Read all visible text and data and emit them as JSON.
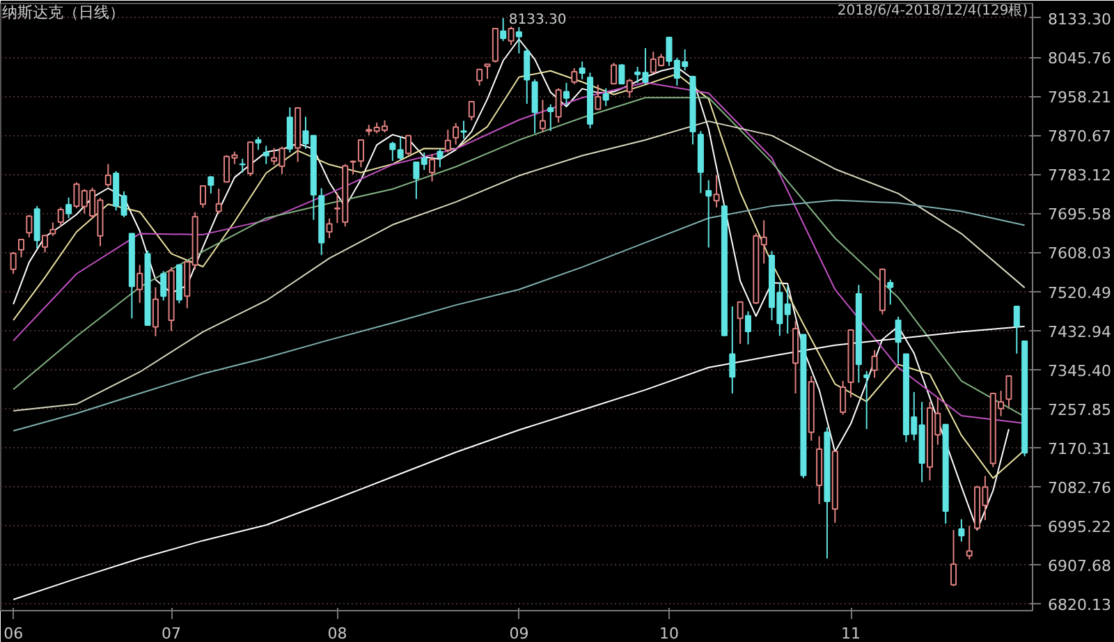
{
  "chart_data": {
    "type": "candlestick",
    "title": "纳斯达克（日线）",
    "annotations": [
      "2018/6/4-2018/12/4(129根)",
      "8133.30"
    ],
    "categories": [
      "06",
      null,
      null,
      null,
      null,
      null,
      null,
      null,
      null,
      null,
      null,
      null,
      null,
      null,
      null,
      null,
      null,
      null,
      null,
      null,
      "07",
      null,
      null,
      null,
      null,
      null,
      null,
      null,
      null,
      null,
      null,
      null,
      null,
      null,
      null,
      null,
      null,
      null,
      null,
      null,
      null,
      "08",
      null,
      null,
      null,
      null,
      null,
      null,
      null,
      null,
      null,
      null,
      null,
      null,
      null,
      null,
      null,
      null,
      null,
      null,
      null,
      null,
      null,
      null,
      "09",
      null,
      null,
      null,
      null,
      null,
      null,
      null,
      null,
      null,
      null,
      null,
      null,
      null,
      null,
      null,
      null,
      null,
      null,
      "10",
      null,
      null,
      null,
      null,
      null,
      null,
      null,
      null,
      null,
      null,
      null,
      null,
      null,
      null,
      null,
      null,
      null,
      null,
      null,
      null,
      null,
      null,
      "11",
      null,
      null,
      null,
      null,
      null,
      null,
      null,
      null,
      null,
      null,
      null,
      null,
      null,
      null,
      null,
      null,
      null,
      null,
      null,
      null,
      null,
      null
    ],
    "ohlc": [
      [
        7570,
        7609,
        7560,
        7606
      ],
      [
        7614,
        7637,
        7597,
        7637
      ],
      [
        7652,
        7692,
        7642,
        7689
      ],
      [
        7705,
        7712,
        7617,
        7635
      ],
      [
        7620,
        7648,
        7608,
        7646
      ],
      [
        7650,
        7675,
        7645,
        7659
      ],
      [
        7676,
        7709,
        7666,
        7704
      ],
      [
        7715,
        7731,
        7685,
        7695
      ],
      [
        7712,
        7765,
        7707,
        7761
      ],
      [
        7711,
        7750,
        7695,
        7746
      ],
      [
        7690,
        7753,
        7684,
        7747
      ],
      [
        7645,
        7730,
        7622,
        7725
      ],
      [
        7760,
        7806,
        7755,
        7781
      ],
      [
        7785,
        7790,
        7702,
        7712
      ],
      [
        7735,
        7745,
        7687,
        7692
      ],
      [
        7650,
        7651,
        7460,
        7532
      ],
      [
        7525,
        7580,
        7495,
        7561
      ],
      [
        7605,
        7612,
        7445,
        7445
      ],
      [
        7441,
        7530,
        7420,
        7503
      ],
      [
        7560,
        7566,
        7500,
        7510
      ],
      [
        7456,
        7575,
        7432,
        7567
      ],
      [
        7580,
        7580,
        7494,
        7502
      ],
      [
        7510,
        7588,
        7483,
        7587
      ],
      [
        7580,
        7698,
        7570,
        7688
      ],
      [
        7716,
        7757,
        7708,
        7757
      ],
      [
        7777,
        7779,
        7740,
        7759
      ],
      [
        7700,
        7751,
        7695,
        7717
      ],
      [
        7766,
        7826,
        7766,
        7823
      ],
      [
        7820,
        7834,
        7806,
        7826
      ],
      [
        7806,
        7818,
        7787,
        7805
      ],
      [
        7785,
        7857,
        7779,
        7855
      ],
      [
        7860,
        7867,
        7838,
        7854
      ],
      [
        7832,
        7847,
        7806,
        7825
      ],
      [
        7813,
        7842,
        7804,
        7820
      ],
      [
        7801,
        7845,
        7784,
        7841
      ],
      [
        7911,
        7933,
        7832,
        7840
      ],
      [
        7842,
        7933,
        7811,
        7932
      ],
      [
        7880,
        7912,
        7840,
        7852
      ],
      [
        7870,
        7871,
        7681,
        7737
      ],
      [
        7735,
        7752,
        7602,
        7630
      ],
      [
        7654,
        7684,
        7640,
        7672
      ],
      [
        7706,
        7742,
        7674,
        7707
      ],
      [
        7676,
        7806,
        7666,
        7802
      ],
      [
        7811,
        7814,
        7783,
        7812
      ],
      [
        7813,
        7860,
        7799,
        7860
      ],
      [
        7880,
        7894,
        7871,
        7883
      ],
      [
        7880,
        7899,
        7875,
        7888
      ],
      [
        7882,
        7904,
        7877,
        7891
      ],
      [
        7852,
        7856,
        7813,
        7839
      ],
      [
        7838,
        7867,
        7815,
        7820
      ],
      [
        7830,
        7871,
        7826,
        7870
      ],
      [
        7810,
        7811,
        7728,
        7774
      ],
      [
        7819,
        7832,
        7793,
        7806
      ],
      [
        7787,
        7828,
        7767,
        7816
      ],
      [
        7834,
        7840,
        7799,
        7821
      ],
      [
        7837,
        7883,
        7832,
        7859
      ],
      [
        7865,
        7898,
        7850,
        7889
      ],
      [
        7880,
        7903,
        7863,
        7878
      ],
      [
        7912,
        7946,
        7904,
        7946
      ],
      [
        7993,
        8019,
        7982,
        8018
      ],
      [
        8025,
        8030,
        7997,
        8030
      ],
      [
        8037,
        8110,
        8034,
        8110
      ],
      [
        8104,
        8133.3,
        8082,
        8088
      ],
      [
        8082,
        8114,
        8073,
        8110
      ],
      [
        8102,
        8113,
        8054,
        8092
      ],
      [
        8059,
        8065,
        7941,
        7995
      ],
      [
        7990,
        7996,
        7875,
        7922
      ],
      [
        7886,
        7950,
        7877,
        7903
      ],
      [
        7932,
        7940,
        7880,
        7924
      ],
      [
        7912,
        7976,
        7899,
        7972
      ],
      [
        7968,
        7988,
        7937,
        7954
      ],
      [
        7990,
        8021,
        7985,
        8013
      ],
      [
        8021,
        8036,
        7996,
        8010
      ],
      [
        8000,
        8011,
        7886,
        7896
      ],
      [
        7929,
        7984,
        7927,
        7957
      ],
      [
        7963,
        7976,
        7936,
        7950
      ],
      [
        7986,
        8033,
        7985,
        8028
      ],
      [
        8028,
        8030,
        7986,
        7986
      ],
      [
        7968,
        7997,
        7955,
        7993
      ],
      [
        8012,
        8024,
        7988,
        8007
      ],
      [
        8011,
        8066,
        7985,
        7990
      ],
      [
        8012,
        8058,
        8011,
        8041
      ],
      [
        8027,
        8053,
        8025,
        8046
      ],
      [
        8090,
        8091,
        8026,
        8037
      ],
      [
        8038,
        8044,
        7982,
        7999
      ],
      [
        8035,
        8063,
        8016,
        8025
      ],
      [
        8002,
        8004,
        7850,
        7879
      ],
      [
        7872,
        7880,
        7741,
        7788
      ],
      [
        7746,
        7770,
        7619,
        7735
      ],
      [
        7724,
        7781,
        7709,
        7738
      ],
      [
        7712,
        7715,
        7421,
        7422
      ],
      [
        7380,
        7487,
        7292,
        7329
      ],
      [
        7460,
        7498,
        7403,
        7497
      ],
      [
        7466,
        7476,
        7402,
        7431
      ],
      [
        7495,
        7651,
        7492,
        7645
      ],
      [
        7625,
        7680,
        7583,
        7642
      ],
      [
        7601,
        7611,
        7456,
        7485
      ],
      [
        7518,
        7541,
        7421,
        7449
      ],
      [
        7492,
        7533,
        7426,
        7469
      ],
      [
        7360,
        7454,
        7292,
        7437
      ],
      [
        7424,
        7424,
        7102,
        7108
      ],
      [
        7205,
        7331,
        7186,
        7318
      ],
      [
        7086,
        7196,
        7044,
        7167
      ],
      [
        7205,
        7216,
        6922,
        7050
      ],
      [
        7033,
        7164,
        7002,
        7162
      ],
      [
        7250,
        7320,
        7244,
        7306
      ],
      [
        7317,
        7435,
        7283,
        7434
      ],
      [
        7515,
        7535,
        7316,
        7357
      ],
      [
        7333,
        7342,
        7212,
        7328
      ],
      [
        7344,
        7389,
        7327,
        7375
      ],
      [
        7478,
        7572,
        7469,
        7570
      ],
      [
        7540,
        7547,
        7491,
        7530
      ],
      [
        7456,
        7464,
        7359,
        7407
      ],
      [
        7380,
        7381,
        7183,
        7200
      ],
      [
        7239,
        7295,
        7187,
        7201
      ],
      [
        7221,
        7273,
        7093,
        7136
      ],
      [
        7127,
        7273,
        7097,
        7259
      ],
      [
        7199,
        7282,
        7177,
        7247
      ],
      [
        7222,
        7223,
        7000,
        7028
      ],
      [
        6863,
        6986,
        6860,
        6909
      ],
      [
        6988,
        7010,
        6960,
        6973
      ],
      [
        6928,
        6995,
        6920,
        6939
      ],
      [
        6990,
        7085,
        6985,
        7082
      ],
      [
        7041,
        7107,
        7008,
        7082
      ],
      [
        7135,
        7293,
        7127,
        7292
      ],
      [
        7258,
        7298,
        7241,
        7273
      ],
      [
        7279,
        7332,
        7262,
        7331
      ],
      [
        7487,
        7487,
        7381,
        7442
      ],
      [
        7409,
        7410,
        7151,
        7159
      ]
    ],
    "colors": [
      "#e08080",
      "#e08080",
      "#e08080",
      "#5fe3e3",
      "#e08080",
      "#e08080",
      "#e08080",
      "#5fe3e3",
      "#e08080",
      "#e08080",
      "#e08080",
      "#e08080",
      "#e08080",
      "#5fe3e3",
      "#5fe3e3",
      "#5fe3e3",
      "#e08080",
      "#5fe3e3",
      "#e08080",
      "#5fe3e3",
      "#e08080",
      "#5fe3e3",
      "#e08080",
      "#e08080",
      "#e08080",
      "#5fe3e3",
      "#e08080",
      "#e08080",
      "#e08080",
      "#5fe3e3",
      "#e08080",
      "#5fe3e3",
      "#5fe3e3",
      "#e08080",
      "#e08080",
      "#5fe3e3",
      "#e08080",
      "#5fe3e3",
      "#5fe3e3",
      "#5fe3e3",
      "#e08080",
      "#e08080",
      "#e08080",
      "#e08080",
      "#e08080",
      "#e08080",
      "#e08080",
      "#e08080",
      "#5fe3e3",
      "#5fe3e3",
      "#e08080",
      "#5fe3e3",
      "#5fe3e3",
      "#e08080",
      "#5fe3e3",
      "#e08080",
      "#e08080",
      "#5fe3e3",
      "#e08080",
      "#e08080",
      "#e08080",
      "#e08080",
      "#5fe3e3",
      "#e08080",
      "#5fe3e3",
      "#5fe3e3",
      "#5fe3e3",
      "#e08080",
      "#5fe3e3",
      "#e08080",
      "#5fe3e3",
      "#e08080",
      "#5fe3e3",
      "#5fe3e3",
      "#e08080",
      "#5fe3e3",
      "#e08080",
      "#5fe3e3",
      "#e08080",
      "#5fe3e3",
      "#5fe3e3",
      "#e08080",
      "#e08080",
      "#5fe3e3",
      "#5fe3e3",
      "#5fe3e3",
      "#5fe3e3",
      "#5fe3e3",
      "#5fe3e3",
      "#e08080",
      "#5fe3e3",
      "#5fe3e3",
      "#e08080",
      "#5fe3e3",
      "#e08080",
      "#e08080",
      "#5fe3e3",
      "#5fe3e3",
      "#5fe3e3",
      "#e08080",
      "#5fe3e3",
      "#e08080",
      "#e08080",
      "#5fe3e3",
      "#e08080",
      "#e08080",
      "#e08080",
      "#5fe3e3",
      "#5fe3e3",
      "#e08080",
      "#e08080",
      "#5fe3e3",
      "#5fe3e3",
      "#5fe3e3",
      "#5fe3e3",
      "#5fe3e3",
      "#e08080",
      "#e08080",
      "#5fe3e3",
      "#e08080",
      "#5fe3e3",
      "#e08080",
      "#e08080",
      "#e08080",
      "#e08080",
      "#e08080",
      "#e08080",
      "#5fe3e3",
      "#5fe3e3"
    ],
    "series": [
      {
        "type": "line",
        "color": "#ffffff",
        "values": [
          7492,
          null,
          7586,
          null,
          7643,
          null,
          7667,
          null,
          7693,
          null,
          7731,
          null,
          7752,
          null,
          7731,
          null,
          7656,
          null,
          7547,
          null,
          7517,
          null,
          7534,
          null,
          7620,
          null,
          7702,
          null,
          7776,
          null,
          7805,
          null,
          7833,
          null,
          7839,
          null,
          7852,
          null,
          7840,
          null,
          7765,
          null,
          7710,
          null,
          7771,
          null,
          7849,
          null,
          7872,
          null,
          7862,
          null,
          7822,
          null,
          7817,
          null,
          7838,
          null,
          7879,
          null,
          7952,
          null,
          8038,
          null,
          8086,
          null,
          8041,
          null,
          7967,
          null,
          7935,
          null,
          7975,
          null,
          7966,
          null,
          7968,
          null,
          7983,
          null,
          8001,
          null,
          8015,
          null,
          8023,
          null,
          7997,
          null,
          7885,
          null,
          7712,
          null,
          7544,
          null,
          7465,
          null,
          7540,
          null,
          7538,
          null,
          7390,
          null,
          7300,
          null,
          7161,
          null,
          7224,
          null,
          7317,
          null,
          7413,
          null,
          7442,
          null,
          7382,
          null,
          null,
          null,
          null,
          null,
          7083,
          null,
          6986,
          null,
          7074,
          null,
          7212,
          null,
          null
        ]
      },
      {
        "type": "line",
        "color": "#e8e0a0",
        "values": [
          7456,
          null,
          null,
          null,
          7552,
          null,
          null,
          null,
          7654,
          null,
          null,
          null,
          7716,
          null,
          null,
          null,
          7699,
          null,
          null,
          null,
          7605,
          null,
          null,
          null,
          7576,
          null,
          null,
          null,
          7677,
          null,
          null,
          null,
          7786,
          null,
          null,
          null,
          7836,
          null,
          null,
          null,
          7805,
          null,
          null,
          null,
          7787,
          null,
          null,
          null,
          7806,
          null,
          null,
          null,
          7841,
          null,
          null,
          null,
          7840,
          null,
          null,
          null,
          7890,
          null,
          null,
          null,
          8001,
          null,
          null,
          null,
          8015,
          null,
          null,
          null,
          7990,
          null,
          null,
          null,
          7962,
          null,
          null,
          null,
          7984,
          null,
          null,
          null,
          8008,
          null,
          null,
          null,
          7952,
          null,
          null,
          null,
          7743,
          null,
          null,
          null,
          7584,
          null,
          null,
          null,
          7447,
          null,
          null,
          null,
          7313,
          null,
          null,
          null,
          7274,
          null,
          null,
          null,
          7357,
          null,
          null,
          null,
          7335,
          null,
          null,
          null,
          7198,
          null,
          null,
          null,
          7102,
          null,
          null,
          null,
          7165
        ]
      },
      {
        "type": "line",
        "color": "#c050c0",
        "values": [
          7410,
          null,
          null,
          null,
          null,
          null,
          null,
          null,
          7560,
          null,
          null,
          null,
          null,
          null,
          null,
          null,
          7650,
          null,
          null,
          null,
          null,
          null,
          null,
          null,
          7648,
          null,
          null,
          null,
          null,
          null,
          null,
          null,
          7680,
          null,
          null,
          null,
          null,
          null,
          null,
          null,
          7740,
          null,
          null,
          null,
          null,
          null,
          null,
          null,
          7805,
          null,
          null,
          null,
          null,
          null,
          null,
          null,
          7840,
          null,
          null,
          null,
          null,
          null,
          null,
          null,
          7905,
          null,
          null,
          null,
          null,
          null,
          null,
          null,
          7955,
          null,
          null,
          null,
          null,
          null,
          null,
          null,
          7989,
          null,
          null,
          null,
          null,
          null,
          null,
          null,
          7965,
          null,
          null,
          null,
          null,
          null,
          null,
          null,
          7820,
          null,
          null,
          null,
          null,
          null,
          null,
          null,
          7525,
          null,
          null,
          null,
          null,
          null,
          null,
          null,
          7350,
          null,
          null,
          null,
          null,
          null,
          null,
          null,
          7242,
          null,
          null,
          null,
          null,
          null,
          null,
          null,
          7225
        ]
      },
      {
        "type": "line",
        "color": "#80b080",
        "values": [
          7301,
          null,
          null,
          null,
          null,
          null,
          null,
          null,
          7420,
          null,
          null,
          null,
          null,
          null,
          null,
          null,
          7530,
          null,
          null,
          null,
          null,
          null,
          null,
          null,
          7610,
          null,
          null,
          null,
          null,
          null,
          null,
          null,
          7685,
          null,
          null,
          null,
          null,
          null,
          null,
          null,
          7718,
          null,
          null,
          null,
          null,
          null,
          null,
          null,
          7750,
          null,
          null,
          null,
          null,
          null,
          null,
          null,
          7800,
          null,
          null,
          null,
          null,
          null,
          null,
          null,
          7860,
          null,
          null,
          null,
          null,
          null,
          null,
          null,
          7910,
          null,
          null,
          null,
          null,
          null,
          null,
          null,
          7955,
          null,
          null,
          null,
          null,
          null,
          null,
          null,
          7955,
          null,
          null,
          null,
          null,
          null,
          null,
          null,
          7810,
          null,
          null,
          null,
          null,
          null,
          null,
          null,
          7640,
          null,
          null,
          null,
          null,
          null,
          null,
          null,
          7507,
          null,
          null,
          null,
          null,
          null,
          null,
          null,
          7320,
          null,
          null,
          null,
          null,
          null,
          null,
          null,
          7240
        ]
      },
      {
        "type": "line",
        "color": "#d8d8c0",
        "values": [
          7253,
          null,
          null,
          null,
          null,
          null,
          null,
          null,
          7268,
          null,
          null,
          null,
          null,
          null,
          null,
          null,
          7340,
          null,
          null,
          null,
          null,
          null,
          null,
          null,
          7430,
          null,
          null,
          null,
          null,
          null,
          null,
          null,
          7500,
          null,
          null,
          null,
          null,
          null,
          null,
          null,
          7595,
          null,
          null,
          null,
          null,
          null,
          null,
          null,
          7670,
          null,
          null,
          null,
          null,
          null,
          null,
          null,
          7721,
          null,
          null,
          null,
          null,
          null,
          null,
          null,
          7780,
          null,
          null,
          null,
          null,
          null,
          null,
          null,
          7825,
          null,
          null,
          null,
          null,
          null,
          null,
          null,
          7860,
          null,
          null,
          null,
          null,
          null,
          null,
          null,
          7902,
          null,
          null,
          null,
          null,
          null,
          null,
          null,
          7870,
          null,
          null,
          null,
          null,
          null,
          null,
          null,
          7795,
          null,
          null,
          null,
          null,
          null,
          null,
          null,
          7740,
          null,
          null,
          null,
          null,
          null,
          null,
          null,
          7650,
          null,
          null,
          null,
          null,
          null,
          null,
          null,
          7529
        ]
      },
      {
        "type": "line",
        "color": "#80b0b0",
        "values": [
          7208,
          null,
          null,
          null,
          null,
          null,
          null,
          null,
          7247,
          null,
          null,
          null,
          null,
          null,
          null,
          null,
          7292,
          null,
          null,
          null,
          null,
          null,
          null,
          null,
          7336,
          null,
          null,
          null,
          null,
          null,
          null,
          null,
          7372,
          null,
          null,
          null,
          null,
          null,
          null,
          null,
          7412,
          null,
          null,
          null,
          null,
          null,
          null,
          null,
          7450,
          null,
          null,
          null,
          null,
          null,
          null,
          null,
          7490,
          null,
          null,
          null,
          null,
          null,
          null,
          null,
          7525,
          null,
          null,
          null,
          null,
          null,
          null,
          null,
          7575,
          null,
          null,
          null,
          null,
          null,
          null,
          null,
          7630,
          null,
          null,
          null,
          null,
          null,
          null,
          null,
          7685,
          null,
          null,
          null,
          null,
          null,
          null,
          null,
          7712,
          null,
          null,
          null,
          null,
          null,
          null,
          null,
          7725,
          null,
          null,
          null,
          null,
          null,
          null,
          null,
          7719,
          null,
          null,
          null,
          null,
          null,
          null,
          null,
          7700,
          null,
          null,
          null,
          null,
          null,
          null,
          null,
          7669
        ]
      },
      {
        "type": "line",
        "color": "#ffffff",
        "values": [
          6830,
          null,
          null,
          null,
          null,
          null,
          null,
          null,
          6877,
          null,
          null,
          null,
          null,
          null,
          null,
          null,
          6922,
          null,
          null,
          null,
          null,
          null,
          null,
          null,
          6962,
          null,
          null,
          null,
          null,
          null,
          null,
          null,
          6997,
          null,
          null,
          null,
          null,
          null,
          null,
          null,
          7050,
          null,
          null,
          null,
          null,
          null,
          null,
          null,
          7105,
          null,
          null,
          null,
          null,
          null,
          null,
          null,
          7160,
          null,
          null,
          null,
          null,
          null,
          null,
          null,
          7210,
          null,
          null,
          null,
          null,
          null,
          null,
          null,
          7255,
          null,
          null,
          null,
          null,
          null,
          null,
          null,
          7300,
          null,
          null,
          null,
          null,
          null,
          null,
          null,
          7350,
          null,
          null,
          null,
          null,
          null,
          null,
          null,
          7376,
          null,
          null,
          null,
          null,
          null,
          null,
          null,
          7400,
          null,
          null,
          null,
          null,
          null,
          null,
          null,
          7415,
          null,
          null,
          null,
          null,
          null,
          null,
          null,
          7430,
          null,
          null,
          null,
          null,
          null,
          null,
          null,
          7442
        ]
      }
    ],
    "ylim": [
      6805,
      8166
    ],
    "yticks": [
      {
        "value": 8133.3,
        "label": "8133.30"
      },
      8045.76,
      7958.21,
      7870.67,
      7783.12,
      7695.58,
      7608.03,
      7520.49,
      7432.94,
      {
        "value": 7345.4,
        "label": "7345.40"
      },
      7257.85,
      7170.31,
      7082.76,
      6995.22,
      6907.68,
      6820.13
    ],
    "grid": "y"
  }
}
